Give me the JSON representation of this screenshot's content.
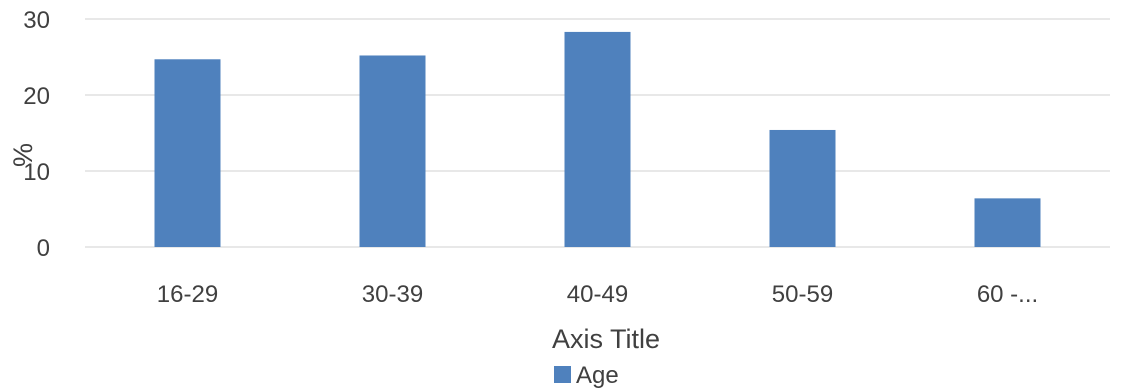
{
  "chart_data": {
    "type": "bar",
    "categories": [
      "16-29",
      "30-39",
      "40-49",
      "50-59",
      "60 -..."
    ],
    "series": [
      {
        "name": "Age",
        "values": [
          24.7,
          25.2,
          28.3,
          15.4,
          6.4
        ],
        "color": "#4F81BD"
      }
    ],
    "xlabel": "Axis Title",
    "ylabel": "%",
    "ylim": [
      0,
      30
    ],
    "yticks": [
      "0",
      "10",
      "20",
      "30"
    ],
    "grid": true,
    "legend_position": "bottom"
  }
}
